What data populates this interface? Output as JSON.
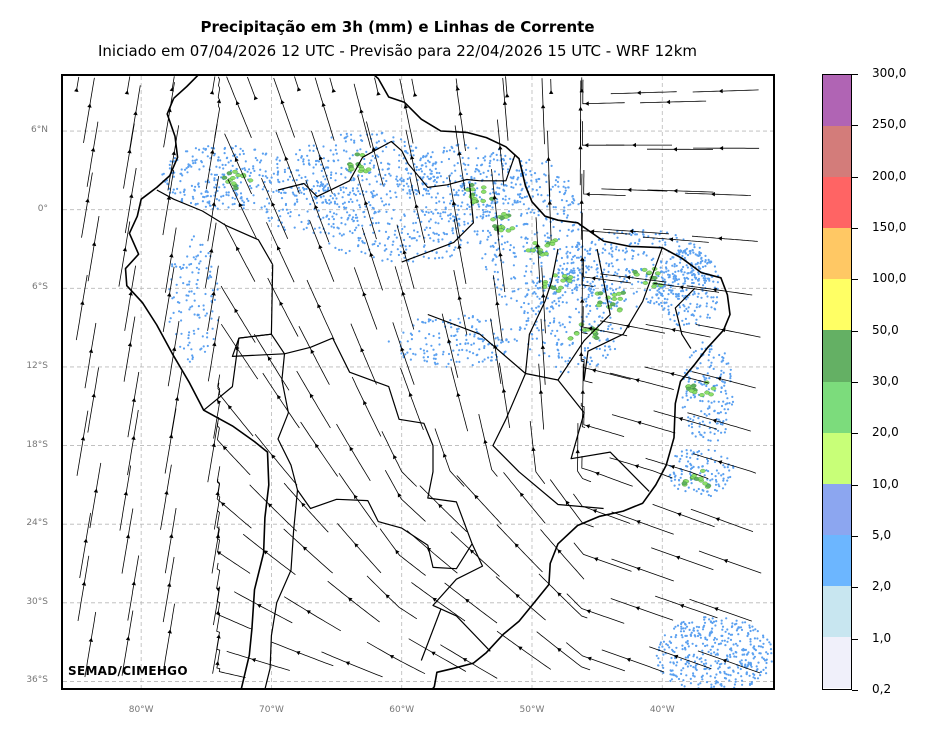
{
  "header": {
    "title": "Precipitação em 3h (mm) e Linhas de Corrente",
    "subtitle": "Iniciado em 07/04/2026 12 UTC - Previsão para 22/04/2026 15 UTC - WRF 12km"
  },
  "map": {
    "lon_range": [
      -86,
      -31.5
    ],
    "lat_range": [
      -36.5,
      10.2
    ],
    "lat_labels": [
      "6°N",
      "0°",
      "6°S",
      "12°S",
      "18°S",
      "24°S",
      "30°S",
      "36°S"
    ],
    "lat_values": [
      6,
      0,
      -6,
      -12,
      -18,
      -24,
      -30,
      -36
    ],
    "lon_labels": [
      "80°W",
      "70°W",
      "60°W",
      "50°W",
      "40°W"
    ],
    "lon_values": [
      -80,
      -70,
      -60,
      -50,
      -40
    ],
    "gridlines": "dashed gray",
    "credit": "SEMAD/CIMEHGO"
  },
  "colorbar": {
    "labels": [
      "300,0",
      "250,0",
      "200,0",
      "150,0",
      "100,0",
      "50,0",
      "30,0",
      "20,0",
      "10,0",
      "5,0",
      "2,0",
      "1,0",
      "0,2"
    ],
    "colors": [
      "#b064b4",
      "#d37c7a",
      "#ff6464",
      "#ffc864",
      "#ffff64",
      "#64b064",
      "#7cdc7c",
      "#c8ff78",
      "#8ca6f0",
      "#6cb6ff",
      "#c8e6f0",
      "#f0f0fa"
    ]
  },
  "colors": {
    "rain_light": "#5aa0f0",
    "rain_medium": "#8ce06a",
    "rain_strong": "#5fb05f"
  }
}
